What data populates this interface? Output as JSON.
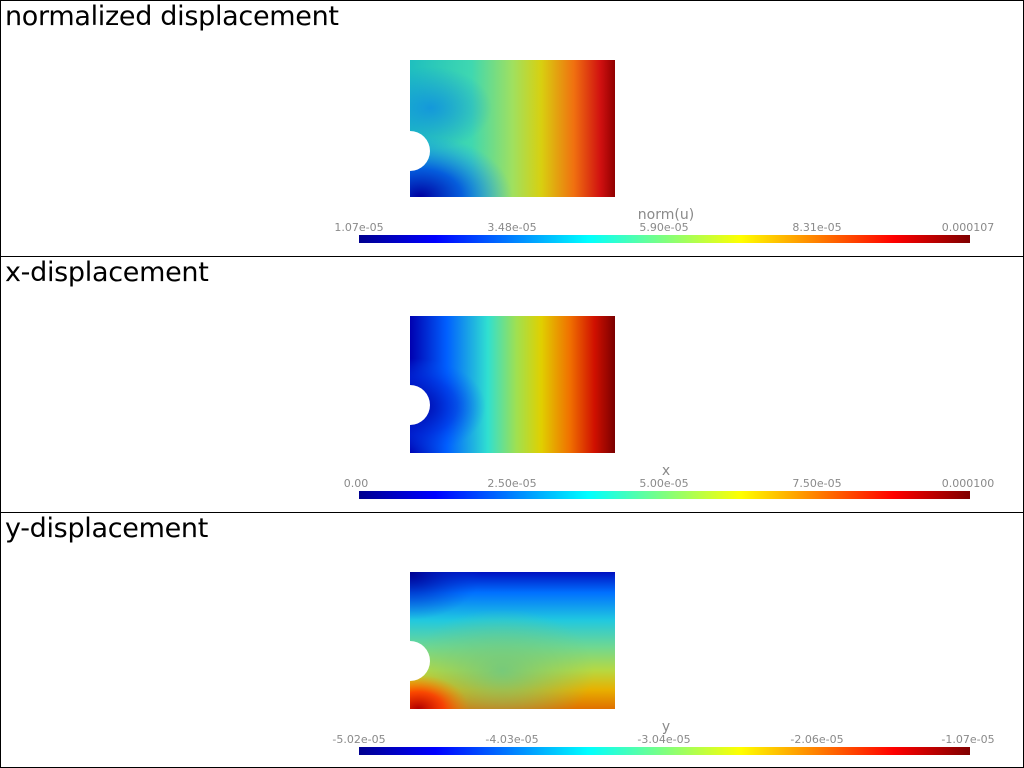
{
  "panels": [
    {
      "title": "normalized displacement",
      "colorbar": {
        "title": "norm(u)",
        "ticks": [
          "1.07e-05",
          "3.48e-05",
          "5.90e-05",
          "8.31e-05",
          "0.000107"
        ]
      }
    },
    {
      "title": "x-displacement",
      "colorbar": {
        "title": "x",
        "ticks": [
          "0.00",
          "2.50e-05",
          "5.00e-05",
          "7.50e-05",
          "0.000100"
        ]
      }
    },
    {
      "title": "y-displacement",
      "colorbar": {
        "title": "y",
        "ticks": [
          "-5.02e-05",
          "-4.03e-05",
          "-3.04e-05",
          "-2.06e-05",
          "-1.07e-05"
        ]
      }
    }
  ],
  "colormap": "jet",
  "colors": {
    "border": "#000000",
    "label_gray": "#8a8a8a",
    "background": "#ffffff"
  }
}
